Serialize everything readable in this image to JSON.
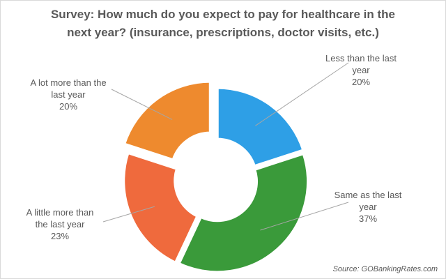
{
  "chart_data": {
    "type": "pie",
    "variant": "donut-exploded",
    "title": [
      "Survey: How much do you expect to pay for healthcare in the",
      "next year? (insurance, prescriptions, doctor visits, etc.)"
    ],
    "slices": [
      {
        "label": [
          "Less than the last",
          "year"
        ],
        "value": 20,
        "value_text": "20%",
        "color": "#2e9fe6"
      },
      {
        "label": [
          "Same as the last",
          "year"
        ],
        "value": 37,
        "value_text": "37%",
        "color": "#3a9a3a"
      },
      {
        "label": [
          "A little more than",
          "the last year"
        ],
        "value": 23,
        "value_text": "23%",
        "color": "#ef6a3d"
      },
      {
        "label": [
          "A lot more than the",
          "last year"
        ],
        "value": 20,
        "value_text": "20%",
        "color": "#ee8a2e"
      }
    ],
    "source": "Source: GOBankingRates.com"
  }
}
